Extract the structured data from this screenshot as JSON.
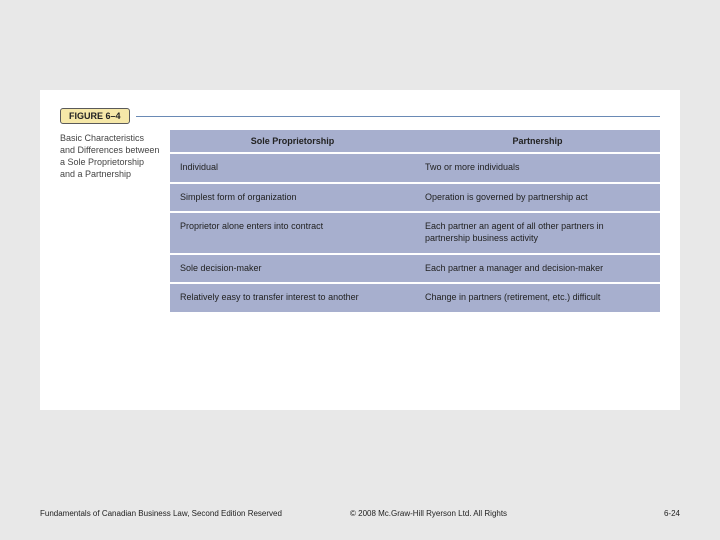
{
  "slide": {
    "background_color": "#e8e8e8",
    "panel_color": "#ffffff"
  },
  "figure": {
    "label": "FIGURE 6–4",
    "label_bg": "#f6e8a8",
    "rule_color": "#6a8ab5",
    "caption": "Basic Characteristics and Differences between a Sole Proprietorship and a Partnership"
  },
  "table": {
    "type": "table",
    "bg_color": "#a7afce",
    "divider_color": "#ffffff",
    "font_size_pt": 9,
    "columns": [
      "Sole Proprietorship",
      "Partnership"
    ],
    "rows": [
      [
        "Individual",
        "Two or more individuals"
      ],
      [
        "Simplest form of organization",
        "Operation is governed by partnership act"
      ],
      [
        "Proprietor alone enters into contract",
        "Each partner an agent of all other partners in partnership business activity"
      ],
      [
        "Sole decision-maker",
        "Each partner a manager and decision-maker"
      ],
      [
        "Relatively easy to transfer interest to another",
        "Change in partners (retirement, etc.) difficult"
      ]
    ]
  },
  "footer": {
    "left": "Fundamentals of Canadian Business Law, Second Edition Reserved",
    "mid": "© 2008 Mc.Graw-Hill Ryerson Ltd. All Rights",
    "right": "6-24"
  }
}
